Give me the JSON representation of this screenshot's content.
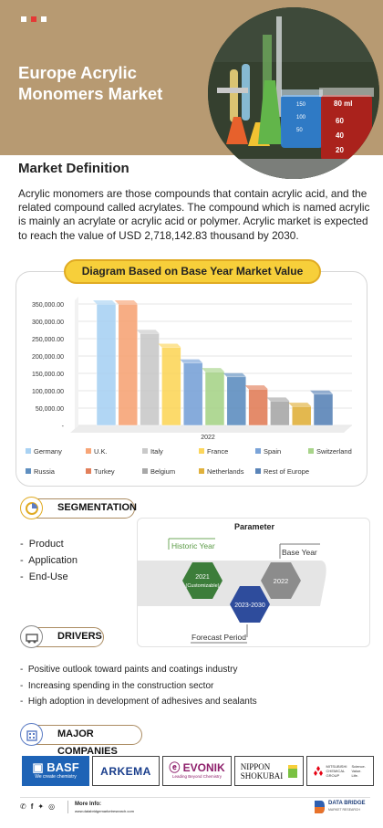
{
  "header": {
    "title_line1": "Europe Acrylic",
    "title_line2": "Monomers Market",
    "beaker_label": "80 ml",
    "beaker_marks": [
      "60",
      "40",
      "20"
    ],
    "flask_marks": [
      "150",
      "100",
      "50"
    ]
  },
  "market_definition": {
    "heading": "Market Definition",
    "text": "Acrylic monomers are those compounds that contain acrylic acid, and the related compound called acrylates. The compound which is named acrylic is mainly an acrylate or acrylic acid or polymer. Acrylic market is expected to reach the value of USD 2,718,142.83 thousand by 2030."
  },
  "chart_section": {
    "pill_label": "Diagram Based on Base Year Market Value"
  },
  "chart_data": {
    "type": "bar",
    "categories": [
      "2022"
    ],
    "y_tick_labels": [
      "350,000.00",
      "300,000.00",
      "250,000.00",
      "200,000.00",
      "150,000.00",
      "100,000.00",
      "50,000.00",
      "-"
    ],
    "ylim": [
      0,
      350000
    ],
    "x_label": "2022",
    "series": [
      {
        "name": "Germany",
        "value": 350000,
        "color": "#a9d2f3"
      },
      {
        "name": "U.K.",
        "value": 350000,
        "color": "#f7a577"
      },
      {
        "name": "Italy",
        "value": 265000,
        "color": "#c9c9c9"
      },
      {
        "name": "France",
        "value": 225000,
        "color": "#fcd65c"
      },
      {
        "name": "Spain",
        "value": 180000,
        "color": "#7aa3d8"
      },
      {
        "name": "Switzerland",
        "value": 155000,
        "color": "#a8d48a"
      },
      {
        "name": "Russia",
        "value": 140000,
        "color": "#5f8fc0"
      },
      {
        "name": "Turkey",
        "value": 105000,
        "color": "#e27f5a"
      },
      {
        "name": "Belgium",
        "value": 70000,
        "color": "#a8a8a8"
      },
      {
        "name": "Netherlands",
        "value": 55000,
        "color": "#e0b13c"
      },
      {
        "name": "Rest of Europe",
        "value": 90000,
        "color": "#5a84b8"
      }
    ],
    "legend_placement": "bottom",
    "grid": true
  },
  "segmentation": {
    "label": "SEGMENTATION",
    "items": [
      "Product",
      "Application",
      "End-Use"
    ]
  },
  "parameter": {
    "title": "Parameter",
    "historic_label": "Historic Year",
    "base_label": "Base Year",
    "forecast_label": "Forecast Period",
    "hex_historic_line1": "2021",
    "hex_historic_line2": "(Customizable)",
    "hex_forecast": "2023-2030",
    "hex_base": "2022"
  },
  "drivers": {
    "label": "DRIVERS",
    "items": [
      "Positive outlook toward paints and coatings industry",
      "Increasing spending in the construction sector",
      "High adoption in development of adhesives and sealants"
    ]
  },
  "companies": {
    "label": "MAJOR COMPANIES",
    "basf": "BASF",
    "basf_tag": "We create chemistry",
    "arkema": "ARKEMA",
    "evonik": "EVONIK",
    "evonik_tag": "Leading Beyond Chemistry",
    "nippon_line1": "NIPPON",
    "nippon_line2": "SHOKUBAI",
    "mitsubishi_line1": "MITSUBISHI",
    "mitsubishi_line2": "CHEMICAL",
    "mitsubishi_line3": "GROUP",
    "mitsubishi_side": "Science. Value. Life."
  },
  "footer": {
    "more_info_label": "More Info:",
    "more_info_url": "www.databridgemarketresearch.com",
    "brand_line1": "DATA BRIDGE",
    "brand_line2": "MARKET RESEARCH"
  },
  "colors": {
    "hero_bg": "#b79a72",
    "accent_gold": "#f7cf3a",
    "section_border": "#ab8c62"
  }
}
